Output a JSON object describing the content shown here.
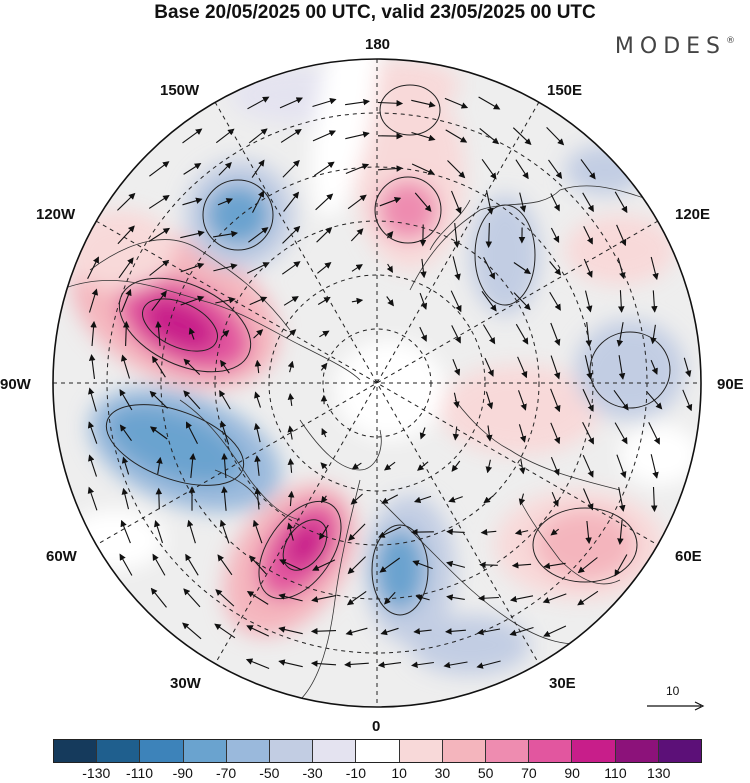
{
  "title": "Base 20/05/2025 00 UTC, valid 23/05/2025 00 UTC",
  "brand": {
    "text": "MODES",
    "mark": "®"
  },
  "longitude_labels": {
    "lon_180": "180",
    "lon_150e": "150E",
    "lon_120e": "120E",
    "lon_90e": "90E",
    "lon_60e": "60E",
    "lon_30e": "30E",
    "lon_0": "0",
    "lon_30w": "30W",
    "lon_60w": "60W",
    "lon_90w": "90W",
    "lon_120w": "120W",
    "lon_150w": "150W"
  },
  "reference_vector": {
    "label": "10"
  },
  "colorbar": {
    "colors": [
      "#153a5c",
      "#1f5f8e",
      "#3d83ba",
      "#6aa3cf",
      "#9ab9dc",
      "#c2cde3",
      "#e4e3f0",
      "#ffffff",
      "#f8d9d9",
      "#f4b5bd",
      "#ee8cb0",
      "#e2569f",
      "#c81e8a",
      "#8c127a",
      "#5c1078"
    ],
    "tick_labels": [
      "-130",
      "-110",
      "-90",
      "-70",
      "-50",
      "-30",
      "-10",
      "10",
      "30",
      "50",
      "70",
      "90",
      "110",
      "130"
    ]
  },
  "anomaly_cells": [
    {
      "id": "pink-150w-120w",
      "level": 110
    },
    {
      "id": "pink-45w",
      "level": 110
    },
    {
      "id": "pink-180",
      "level": 70
    },
    {
      "id": "red-60e",
      "level": 50
    },
    {
      "id": "red-90e",
      "level": 30
    },
    {
      "id": "blue-90w-60w",
      "level": -70
    },
    {
      "id": "blue-150w",
      "level": -70
    },
    {
      "id": "blue-10e",
      "level": -70
    },
    {
      "id": "blue-130e",
      "level": -50
    },
    {
      "id": "blue-100e",
      "level": -30
    }
  ]
}
